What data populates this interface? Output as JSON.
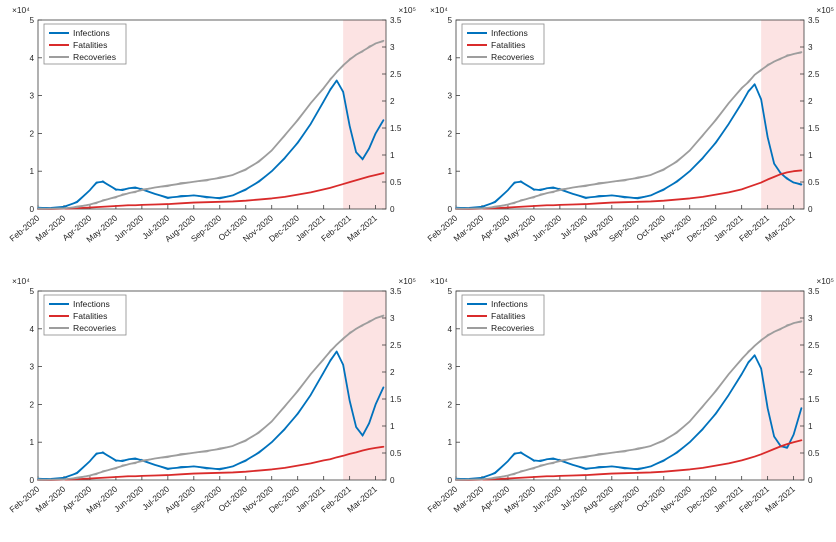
{
  "figure": {
    "left_exponent": "×10⁴",
    "right_exponent": "×10⁵",
    "band_color": "#fbdada",
    "legend": {
      "items": [
        {
          "label": "Infections",
          "color": "#0072bd"
        },
        {
          "label": "Fatalities",
          "color": "#d92b2b"
        },
        {
          "label": "Recoveries",
          "color": "#9d9d9d"
        }
      ]
    }
  },
  "axes": {
    "x_tick_labels": [
      "Feb-2020",
      "Mar-2020",
      "Apr-2020",
      "May-2020",
      "Jun-2020",
      "Jul-2020",
      "Aug-2020",
      "Sep-2020",
      "Oct-2020",
      "Nov-2020",
      "Dec-2020",
      "Jan-2021",
      "Feb-2021",
      "Mar-2021"
    ],
    "x_range": [
      0,
      13.4
    ],
    "band_x": [
      11.75,
      13.4
    ],
    "left_ticks": [
      "0",
      "1",
      "2",
      "3",
      "4",
      "5"
    ],
    "left_tick_values": [
      0,
      1,
      2,
      3,
      4,
      5
    ],
    "right_ticks": [
      "0",
      "0.5",
      "1",
      "1.5",
      "2",
      "2.5",
      "3",
      "3.5"
    ],
    "right_tick_values": [
      0,
      0.5,
      1,
      1.5,
      2,
      2.5,
      3,
      3.5
    ],
    "left_range": [
      0,
      5
    ],
    "right_range": [
      0,
      3.5
    ]
  },
  "chart_data": [
    {
      "type": "line",
      "title": "",
      "xlabel": "",
      "ylabel": "",
      "x": [
        0,
        0.5,
        1,
        1.5,
        2,
        2.25,
        2.5,
        2.75,
        3,
        3.25,
        3.5,
        3.75,
        4,
        4.5,
        5,
        5.5,
        6,
        6.5,
        7,
        7.5,
        8,
        8.5,
        9,
        9.5,
        10,
        10.5,
        11,
        11.25,
        11.5,
        11.75,
        12,
        12.25,
        12.5,
        12.75,
        13,
        13.3
      ],
      "series": [
        {
          "name": "Infections",
          "color": "#0072bd",
          "axis": "left",
          "values": [
            0.02,
            0.03,
            0.06,
            0.18,
            0.5,
            0.7,
            0.72,
            0.62,
            0.52,
            0.5,
            0.55,
            0.57,
            0.52,
            0.4,
            0.3,
            0.33,
            0.36,
            0.32,
            0.28,
            0.36,
            0.52,
            0.72,
            1.0,
            1.35,
            1.75,
            2.25,
            2.85,
            3.15,
            3.4,
            3.1,
            2.2,
            1.5,
            1.32,
            1.6,
            2.0,
            2.35
          ]
        },
        {
          "name": "Fatalities",
          "color": "#d92b2b",
          "axis": "right",
          "values": [
            0.0,
            0.0,
            0.01,
            0.02,
            0.04,
            0.05,
            0.06,
            0.07,
            0.08,
            0.09,
            0.1,
            0.1,
            0.11,
            0.12,
            0.13,
            0.15,
            0.17,
            0.18,
            0.19,
            0.2,
            0.22,
            0.25,
            0.28,
            0.32,
            0.38,
            0.44,
            0.52,
            0.56,
            0.61,
            0.66,
            0.71,
            0.76,
            0.81,
            0.86,
            0.9,
            0.95
          ]
        },
        {
          "name": "Recoveries",
          "color": "#9d9d9d",
          "axis": "right",
          "values": [
            0.0,
            0.01,
            0.02,
            0.05,
            0.12,
            0.17,
            0.22,
            0.27,
            0.32,
            0.37,
            0.42,
            0.46,
            0.5,
            0.57,
            0.62,
            0.67,
            0.72,
            0.77,
            0.82,
            0.9,
            1.05,
            1.25,
            1.55,
            1.95,
            2.35,
            2.8,
            3.2,
            3.42,
            3.62,
            3.8,
            3.95,
            4.08,
            4.18,
            4.28,
            4.38,
            4.45
          ]
        }
      ]
    },
    {
      "type": "line",
      "title": "",
      "xlabel": "",
      "ylabel": "",
      "x": [
        0,
        0.5,
        1,
        1.5,
        2,
        2.25,
        2.5,
        2.75,
        3,
        3.25,
        3.5,
        3.75,
        4,
        4.5,
        5,
        5.5,
        6,
        6.5,
        7,
        7.5,
        8,
        8.5,
        9,
        9.5,
        10,
        10.5,
        11,
        11.25,
        11.5,
        11.75,
        12,
        12.25,
        12.5,
        12.75,
        13,
        13.3
      ],
      "series": [
        {
          "name": "Infections",
          "color": "#0072bd",
          "axis": "left",
          "values": [
            0.02,
            0.03,
            0.06,
            0.18,
            0.5,
            0.7,
            0.72,
            0.62,
            0.52,
            0.5,
            0.55,
            0.57,
            0.52,
            0.4,
            0.3,
            0.33,
            0.36,
            0.32,
            0.28,
            0.36,
            0.52,
            0.72,
            1.0,
            1.35,
            1.75,
            2.25,
            2.8,
            3.1,
            3.3,
            2.9,
            1.9,
            1.2,
            0.95,
            0.8,
            0.7,
            0.65
          ]
        },
        {
          "name": "Fatalities",
          "color": "#d92b2b",
          "axis": "right",
          "values": [
            0.0,
            0.0,
            0.01,
            0.02,
            0.04,
            0.05,
            0.06,
            0.07,
            0.08,
            0.09,
            0.1,
            0.1,
            0.11,
            0.12,
            0.13,
            0.15,
            0.17,
            0.18,
            0.19,
            0.2,
            0.22,
            0.25,
            0.28,
            0.32,
            0.38,
            0.44,
            0.52,
            0.58,
            0.64,
            0.7,
            0.78,
            0.85,
            0.92,
            0.97,
            1.0,
            1.02
          ]
        },
        {
          "name": "Recoveries",
          "color": "#9d9d9d",
          "axis": "right",
          "values": [
            0.0,
            0.01,
            0.02,
            0.05,
            0.12,
            0.17,
            0.22,
            0.27,
            0.32,
            0.37,
            0.42,
            0.46,
            0.5,
            0.57,
            0.62,
            0.67,
            0.72,
            0.77,
            0.82,
            0.9,
            1.05,
            1.25,
            1.55,
            1.95,
            2.35,
            2.8,
            3.2,
            3.35,
            3.55,
            3.68,
            3.8,
            3.9,
            3.98,
            4.05,
            4.1,
            4.15
          ]
        }
      ]
    },
    {
      "type": "line",
      "title": "",
      "xlabel": "",
      "ylabel": "",
      "x": [
        0,
        0.5,
        1,
        1.5,
        2,
        2.25,
        2.5,
        2.75,
        3,
        3.25,
        3.5,
        3.75,
        4,
        4.5,
        5,
        5.5,
        6,
        6.5,
        7,
        7.5,
        8,
        8.5,
        9,
        9.5,
        10,
        10.5,
        11,
        11.25,
        11.5,
        11.75,
        12,
        12.25,
        12.5,
        12.75,
        13,
        13.3
      ],
      "series": [
        {
          "name": "Infections",
          "color": "#0072bd",
          "axis": "left",
          "values": [
            0.02,
            0.03,
            0.06,
            0.18,
            0.5,
            0.7,
            0.72,
            0.62,
            0.52,
            0.5,
            0.55,
            0.57,
            0.52,
            0.4,
            0.3,
            0.33,
            0.36,
            0.32,
            0.28,
            0.36,
            0.52,
            0.72,
            1.0,
            1.35,
            1.75,
            2.25,
            2.85,
            3.15,
            3.4,
            3.05,
            2.1,
            1.4,
            1.18,
            1.5,
            2.0,
            2.45
          ]
        },
        {
          "name": "Fatalities",
          "color": "#d92b2b",
          "axis": "right",
          "values": [
            0.0,
            0.0,
            0.01,
            0.02,
            0.04,
            0.05,
            0.06,
            0.07,
            0.08,
            0.09,
            0.1,
            0.1,
            0.11,
            0.12,
            0.13,
            0.15,
            0.17,
            0.18,
            0.19,
            0.2,
            0.22,
            0.25,
            0.28,
            0.32,
            0.38,
            0.44,
            0.52,
            0.55,
            0.6,
            0.64,
            0.69,
            0.73,
            0.78,
            0.82,
            0.85,
            0.88
          ]
        },
        {
          "name": "Recoveries",
          "color": "#9d9d9d",
          "axis": "right",
          "values": [
            0.0,
            0.01,
            0.02,
            0.05,
            0.12,
            0.17,
            0.22,
            0.27,
            0.32,
            0.37,
            0.42,
            0.46,
            0.5,
            0.57,
            0.62,
            0.67,
            0.72,
            0.77,
            0.82,
            0.9,
            1.05,
            1.25,
            1.55,
            1.95,
            2.35,
            2.8,
            3.2,
            3.4,
            3.58,
            3.74,
            3.88,
            4.0,
            4.1,
            4.18,
            4.28,
            4.35
          ]
        }
      ]
    },
    {
      "type": "line",
      "title": "",
      "xlabel": "",
      "ylabel": "",
      "x": [
        0,
        0.5,
        1,
        1.5,
        2,
        2.25,
        2.5,
        2.75,
        3,
        3.25,
        3.5,
        3.75,
        4,
        4.5,
        5,
        5.5,
        6,
        6.5,
        7,
        7.5,
        8,
        8.5,
        9,
        9.5,
        10,
        10.5,
        11,
        11.25,
        11.5,
        11.75,
        12,
        12.25,
        12.5,
        12.75,
        13,
        13.3
      ],
      "series": [
        {
          "name": "Infections",
          "color": "#0072bd",
          "axis": "left",
          "values": [
            0.02,
            0.03,
            0.06,
            0.18,
            0.5,
            0.7,
            0.72,
            0.62,
            0.52,
            0.5,
            0.55,
            0.57,
            0.52,
            0.4,
            0.3,
            0.33,
            0.36,
            0.32,
            0.28,
            0.36,
            0.52,
            0.72,
            1.0,
            1.35,
            1.75,
            2.25,
            2.8,
            3.1,
            3.3,
            2.95,
            1.9,
            1.15,
            0.9,
            0.85,
            1.2,
            1.9
          ]
        },
        {
          "name": "Fatalities",
          "color": "#d92b2b",
          "axis": "right",
          "values": [
            0.0,
            0.0,
            0.01,
            0.02,
            0.04,
            0.05,
            0.06,
            0.07,
            0.08,
            0.09,
            0.1,
            0.1,
            0.11,
            0.12,
            0.13,
            0.15,
            0.17,
            0.18,
            0.19,
            0.2,
            0.22,
            0.25,
            0.28,
            0.32,
            0.38,
            0.44,
            0.52,
            0.57,
            0.62,
            0.68,
            0.75,
            0.82,
            0.89,
            0.95,
            1.0,
            1.05
          ]
        },
        {
          "name": "Recoveries",
          "color": "#9d9d9d",
          "axis": "right",
          "values": [
            0.0,
            0.01,
            0.02,
            0.05,
            0.12,
            0.17,
            0.22,
            0.27,
            0.32,
            0.37,
            0.42,
            0.46,
            0.5,
            0.57,
            0.62,
            0.67,
            0.72,
            0.77,
            0.82,
            0.9,
            1.05,
            1.25,
            1.55,
            1.95,
            2.35,
            2.8,
            3.2,
            3.38,
            3.55,
            3.7,
            3.82,
            3.92,
            4.0,
            4.08,
            4.15,
            4.2
          ]
        }
      ]
    }
  ]
}
